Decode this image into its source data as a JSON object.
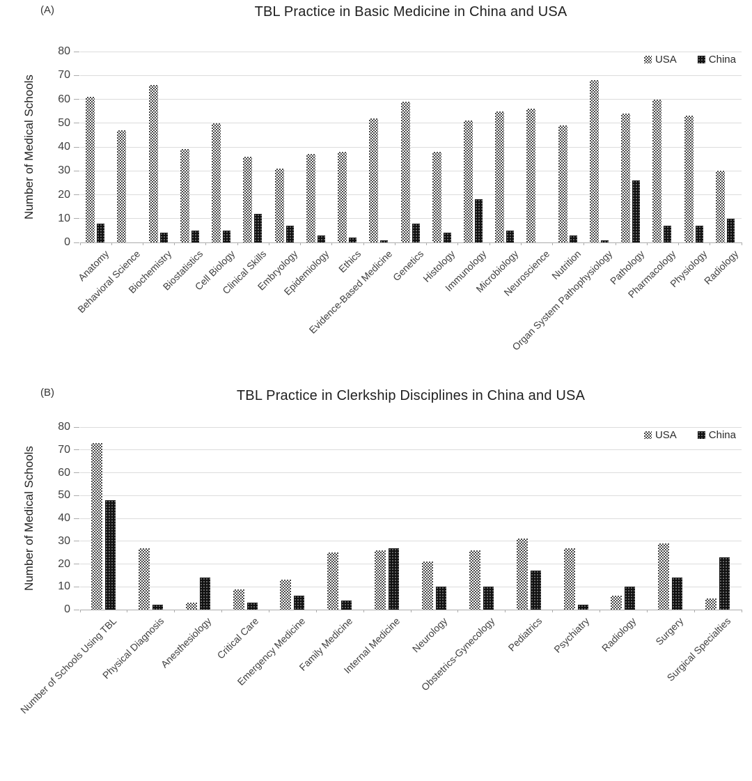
{
  "colors": {
    "usa_pattern": "#474747",
    "china_bar": "#111111",
    "gridline": "#dcdcdc",
    "baseline": "#ababab",
    "text": "#2b2b2b"
  },
  "chart_data": [
    {
      "type": "bar",
      "panel_label": "(A)",
      "title": "TBL Practice in Basic Medicine in China and USA",
      "ylabel": "Number of Medical Schools",
      "xlabel": "",
      "ylim": [
        0,
        80
      ],
      "ytick_step": 10,
      "grid": true,
      "legend_position": "top-right",
      "categories": [
        "Anatomy",
        "Behavioral Science",
        "Biochemistry",
        "Biostatistics",
        "Cell Biology",
        "Clinical Skills",
        "Embryology",
        "Epidemiology",
        "Ethics",
        "Evidence-Based Medicine",
        "Genetics",
        "Histology",
        "Immunology",
        "Microbiology",
        "Neuroscience",
        "Nutrition",
        "Organ System Pathophysiology",
        "Pathology",
        "Pharmacology",
        "Physiology",
        "Radiology"
      ],
      "series": [
        {
          "name": "USA",
          "values": [
            61,
            47,
            66,
            39,
            50,
            36,
            31,
            37,
            38,
            52,
            59,
            38,
            51,
            55,
            56,
            49,
            68,
            54,
            60,
            53,
            30
          ]
        },
        {
          "name": "China",
          "values": [
            8,
            0,
            4,
            5,
            5,
            12,
            7,
            3,
            2,
            1,
            8,
            4,
            18,
            5,
            0,
            3,
            1,
            26,
            7,
            7,
            10
          ]
        }
      ]
    },
    {
      "type": "bar",
      "panel_label": "(B)",
      "title": "TBL Practice in Clerkship Disciplines in China and USA",
      "ylabel": "Number of Medical Schools",
      "xlabel": "",
      "ylim": [
        0,
        80
      ],
      "ytick_step": 10,
      "grid": true,
      "legend_position": "top-right",
      "categories": [
        "Number of Schools Using TBL",
        "Physical Diagnosis",
        "Anesthesiology",
        "Critical Care",
        "Emergency Medicine",
        "Family Medicine",
        "Internal Medicine",
        "Neurology",
        "Obstetrics-Gynecology",
        "Pediatrics",
        "Psychiatry",
        "Radiology",
        "Surgery",
        "Surgical Specialties"
      ],
      "series": [
        {
          "name": "USA",
          "values": [
            73,
            27,
            3,
            9,
            13,
            25,
            26,
            21,
            26,
            31,
            27,
            6,
            29,
            5
          ]
        },
        {
          "name": "China",
          "values": [
            48,
            2,
            14,
            3,
            6,
            4,
            27,
            10,
            10,
            17,
            2,
            10,
            14,
            23
          ]
        }
      ]
    }
  ]
}
